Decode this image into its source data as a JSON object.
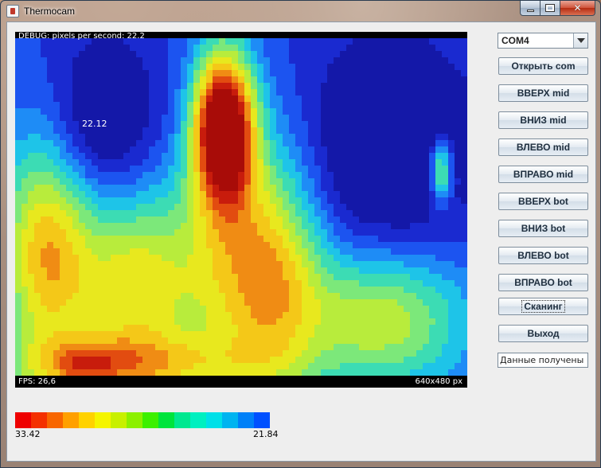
{
  "window": {
    "title": "Thermocam",
    "icon": "java-cup-icon"
  },
  "caption_buttons": {
    "minimize": "minimize-icon",
    "maximize": "maximize-icon",
    "close": "close-icon",
    "close_glyph": "✕"
  },
  "thermal_view": {
    "top_text": "DEBUG: pixels per second: 22.2",
    "bottom_left_text": "FPS: 26,6",
    "bottom_right_text": "640x480 px",
    "cursor_temperature": "22.12"
  },
  "legend": {
    "max_label": "33.42",
    "min_label": "21.84",
    "colors": [
      "#ee0000",
      "#f43000",
      "#f86600",
      "#ffa000",
      "#ffd200",
      "#f5f500",
      "#c8f000",
      "#8cf000",
      "#3cf000",
      "#00e43c",
      "#00e890",
      "#00f0c0",
      "#00e0e8",
      "#00b4f0",
      "#0080f8",
      "#0050ff"
    ]
  },
  "controls": {
    "port_select": {
      "value": "COM4"
    },
    "buttons": [
      {
        "id": "open",
        "label": "Открыть com"
      },
      {
        "id": "up-mid",
        "label": "ВВЕРХ mid"
      },
      {
        "id": "down-mid",
        "label": "ВНИЗ mid"
      },
      {
        "id": "left-mid",
        "label": "ВЛЕВО mid"
      },
      {
        "id": "right-mid",
        "label": "ВПРАВО mid"
      },
      {
        "id": "up-bot",
        "label": "ВВЕРХ bot"
      },
      {
        "id": "down-bot",
        "label": "ВНИЗ bot"
      },
      {
        "id": "left-bot",
        "label": "ВЛЕВО bot"
      },
      {
        "id": "right-bot",
        "label": "ВПРАВО bot"
      },
      {
        "id": "scan",
        "label": "Сканинг"
      },
      {
        "id": "exit",
        "label": "Выход"
      }
    ],
    "status_text": "Данные получены"
  },
  "colors": {
    "window_bg": "#eeeeee",
    "hot": "#cc1100",
    "cold": "#1a1fb0"
  }
}
